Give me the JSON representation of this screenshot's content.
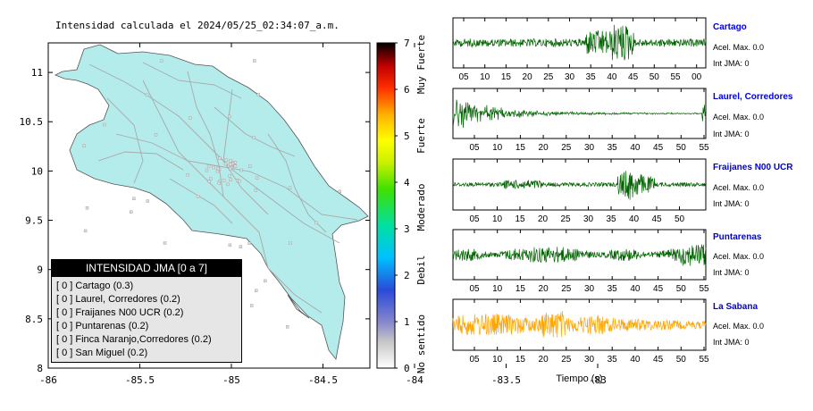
{
  "map": {
    "title": "Intensidad calculada el 2024/05/25_02:34:07_a.m.",
    "x_ticks": [
      "-86",
      "-85.5",
      "-85",
      "-84.5",
      "-84",
      "-83.5",
      "-83"
    ],
    "y_ticks": [
      "11",
      "10.5",
      "10",
      "9.5",
      "9",
      "8.5",
      "8"
    ],
    "land_color": "#b4ecec",
    "ocean_color": "#ffffff"
  },
  "legend": {
    "title": "INTENSIDAD JMA [0 a 7]",
    "items": [
      "[ 0 ] Cartago (0.3)",
      "[ 0 ] Laurel, Corredores (0.2)",
      "[ 0 ] Fraijanes N00 UCR (0.2)",
      "[ 0 ] Puntarenas (0.2)",
      "[ 0 ] Finca Naranjo,Corredores (0.2)",
      "[ 0 ] San Miguel (0.2)"
    ]
  },
  "colorbar": {
    "ticks": [
      "0",
      "1",
      "2",
      "3",
      "4",
      "5",
      "6",
      "7"
    ],
    "labels": [
      "No sentido",
      "Debil",
      "Moderado",
      "Fuerte",
      "Muy Fuerte"
    ]
  },
  "stations": [
    {
      "name": "Cartago",
      "accel": "Acel. Max. 0.0",
      "jma": "Int JMA: 0",
      "color": "#006400",
      "ticks": [
        "05",
        "10",
        "15",
        "20",
        "25",
        "30",
        "35",
        "40",
        "45",
        "50",
        "55",
        "00"
      ]
    },
    {
      "name": "Laurel, Corredores",
      "accel": "Acel. Max. 0.0",
      "jma": "Int JMA: 0",
      "color": "#006400",
      "ticks": [
        "05",
        "10",
        "15",
        "20",
        "25",
        "30",
        "35",
        "40",
        "45",
        "50",
        "55"
      ]
    },
    {
      "name": "Fraijanes N00 UCR",
      "accel": "Acel. Max. 0.0",
      "jma": "Int JMA: 0",
      "color": "#006400",
      "ticks": [
        "05",
        "10",
        "15",
        "20",
        "25",
        "30",
        "35",
        "40",
        "45",
        "50"
      ]
    },
    {
      "name": "Puntarenas",
      "accel": "Acel. Max. 0.0",
      "jma": "Int JMA: 0",
      "color": "#006400",
      "ticks": [
        "05",
        "10",
        "15",
        "20",
        "25",
        "30",
        "35",
        "40",
        "45",
        "50",
        "55"
      ]
    },
    {
      "name": "La Sabana",
      "accel": "Acel. Max. 0.0",
      "jma": "Int JMA: 0",
      "color": "#ffa500",
      "ticks": [
        "05",
        "10",
        "15",
        "20",
        "25",
        "30",
        "35",
        "40",
        "45",
        "50",
        "55"
      ]
    }
  ],
  "xlabel": "Tiempo (s)",
  "chart_data": [
    {
      "type": "map",
      "title": "Intensidad calculada el 2024/05/25_02:34:07_a.m.",
      "xlim": [
        -86,
        -82.5
      ],
      "ylim": [
        8,
        11.3
      ]
    },
    {
      "type": "line",
      "series": [
        {
          "name": "Cartago"
        },
        {
          "name": "Laurel, Corredores"
        },
        {
          "name": "Fraijanes N00 UCR"
        },
        {
          "name": "Puntarenas"
        },
        {
          "name": "La Sabana"
        }
      ],
      "xlabel": "Tiempo (s)"
    }
  ]
}
